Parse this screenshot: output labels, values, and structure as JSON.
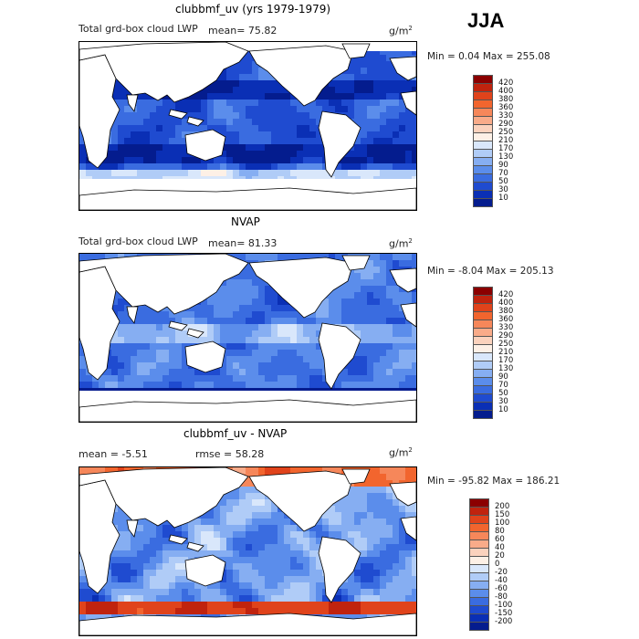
{
  "season": "JJA",
  "units_base": "g/m",
  "units_exp": "2",
  "panels": [
    {
      "title": "clubbmf_uv (yrs 1979-1979)",
      "left_text": "Total grd-box cloud LWP",
      "stat_text": "mean=   75.82",
      "minmax": "Min =    0.04 Max = 255.08",
      "colorbar": [
        "420",
        "400",
        "380",
        "360",
        "330",
        "290",
        "250",
        "210",
        "170",
        "130",
        "90",
        "70",
        "50",
        "30",
        "10"
      ],
      "colors": [
        "#8b0000",
        "#c0230e",
        "#e0431b",
        "#f2652e",
        "#f6875a",
        "#f9ab89",
        "#fbd2bd",
        "#fdf0e6",
        "#d9e7fb",
        "#b0ccf7",
        "#86aef2",
        "#5b8deb",
        "#3a6ce0",
        "#1f4bd0",
        "#0a2fb5",
        "#041c8e"
      ],
      "mean": 75.82
    },
    {
      "title": "NVAP",
      "left_text": "Total grd-box cloud LWP",
      "stat_text": "mean=   81.33",
      "minmax": "Min =   -8.04 Max = 205.13",
      "colorbar": [
        "420",
        "400",
        "380",
        "360",
        "330",
        "290",
        "250",
        "210",
        "170",
        "130",
        "90",
        "70",
        "50",
        "30",
        "10"
      ],
      "colors": [
        "#8b0000",
        "#c0230e",
        "#e0431b",
        "#f2652e",
        "#f6875a",
        "#f9ab89",
        "#fbd2bd",
        "#fdf0e6",
        "#d9e7fb",
        "#b0ccf7",
        "#86aef2",
        "#5b8deb",
        "#3a6ce0",
        "#1f4bd0",
        "#0a2fb5",
        "#041c8e"
      ],
      "mean": 81.33
    },
    {
      "title": "clubbmf_uv - NVAP",
      "left_text": "mean =   -5.51",
      "stat_text": "rmse =   58.28",
      "minmax": "Min = -95.82 Max = 186.21",
      "colorbar": [
        "200",
        "150",
        "100",
        "80",
        "60",
        "40",
        "20",
        "0",
        "-20",
        "-40",
        "-60",
        "-80",
        "-100",
        "-150",
        "-200"
      ],
      "colors": [
        "#8b0000",
        "#c0230e",
        "#e0431b",
        "#f2652e",
        "#f6875a",
        "#f9ab89",
        "#fbd2bd",
        "#fdf0e6",
        "#d9e7fb",
        "#b0ccf7",
        "#86aef2",
        "#5b8deb",
        "#3a6ce0",
        "#1f4bd0",
        "#0a2fb5",
        "#041c8e"
      ],
      "mean": -5.51,
      "rmse": 58.28
    }
  ],
  "chart_data": [
    {
      "type": "heatmap",
      "title": "clubbmf_uv (yrs 1979-1979)",
      "season": "JJA",
      "variable": "Total grd-box cloud LWP",
      "units": "g/m2",
      "mean": 75.82,
      "min": 0.04,
      "max": 255.08,
      "levels": [
        10,
        30,
        50,
        70,
        90,
        130,
        170,
        210,
        250,
        290,
        330,
        360,
        380,
        400,
        420
      ]
    },
    {
      "type": "heatmap",
      "title": "NVAP",
      "season": "JJA",
      "variable": "Total grd-box cloud LWP",
      "units": "g/m2",
      "mean": 81.33,
      "min": -8.04,
      "max": 205.13,
      "levels": [
        10,
        30,
        50,
        70,
        90,
        130,
        170,
        210,
        250,
        290,
        330,
        360,
        380,
        400,
        420
      ]
    },
    {
      "type": "heatmap",
      "title": "clubbmf_uv - NVAP",
      "season": "JJA",
      "units": "g/m2",
      "mean": -5.51,
      "rmse": 58.28,
      "min": -95.82,
      "max": 186.21,
      "levels": [
        -200,
        -150,
        -100,
        -80,
        -60,
        -40,
        -20,
        0,
        20,
        40,
        60,
        80,
        100,
        150,
        200
      ]
    }
  ]
}
